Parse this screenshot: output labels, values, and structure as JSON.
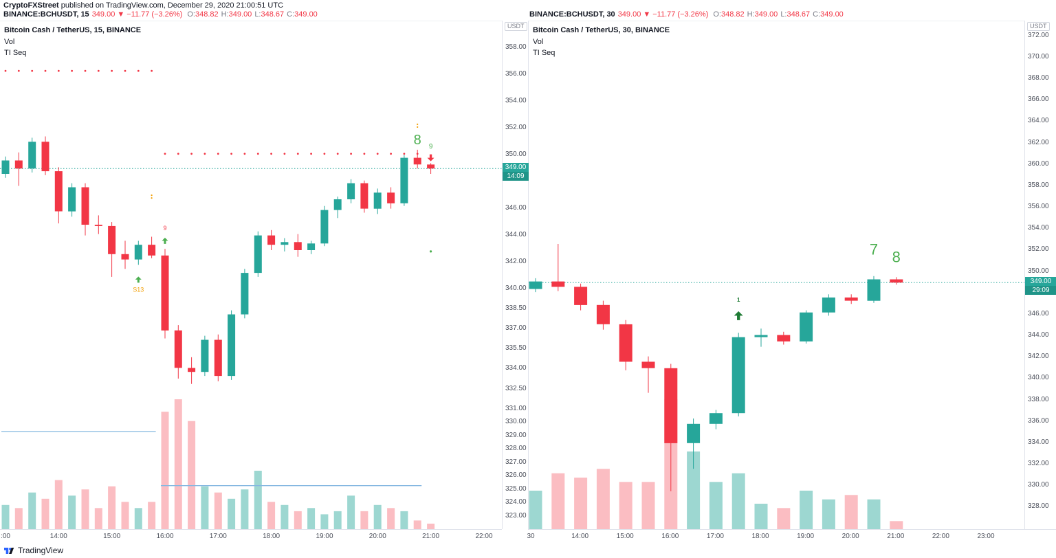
{
  "attribution": {
    "author": "CryptoFXStreet",
    "text": " published on TradingView.com, December 29, 2020 21:00:51 UTC"
  },
  "footer": {
    "brand": "TradingView"
  },
  "colors": {
    "up": "#26a69a",
    "down": "#f23645",
    "vol_up": "rgba(38,166,154,0.45)",
    "vol_down": "rgba(242,54,69,0.33)",
    "green": "#4caf50",
    "red": "#f23645",
    "orange": "#f29f05",
    "darkgreen": "#1e7b34",
    "blue_line": "#86b8e1",
    "tag_bg": "#26a69a"
  },
  "chart_data": [
    {
      "type": "candlestick",
      "header": {
        "symbol": "BINANCE:BCHUSDT, 15",
        "price": "349.00",
        "dir": "▼",
        "change": "−11.77 (−3.26%)",
        "ohlc": [
          {
            "k": "O:",
            "v": "348.82"
          },
          {
            "k": "H:",
            "v": "349.00"
          },
          {
            "k": "L:",
            "v": "348.67"
          },
          {
            "k": "C:",
            "v": "349.00"
          }
        ]
      },
      "legend": {
        "title": "Bitcoin Cash / TetherUS, 15, BINANCE",
        "lines": [
          "Vol",
          "TI Seq"
        ]
      },
      "price_scale": {
        "currency": "USDT",
        "min": 322.0,
        "max": 360.0,
        "last_price": 349.0,
        "last_price_label": "349.00",
        "countdown": "14:09",
        "ticks": [
          "358.00",
          "356.00",
          "354.00",
          "352.00",
          "350.00",
          "346.00",
          "344.00",
          "342.00",
          "340.00",
          "338.50",
          "337.00",
          "335.50",
          "334.00",
          "332.50",
          "331.00",
          "330.00",
          "329.00",
          "328.00",
          "327.00",
          "326.00",
          "325.00",
          "324.00",
          "323.00"
        ]
      },
      "time_axis": {
        "labels": [
          ":00",
          "14:00",
          "15:00",
          "16:00",
          "17:00",
          "18:00",
          "19:00",
          "20:00",
          "21:00",
          "22:00"
        ],
        "interval_min": 15
      },
      "candles": [
        [
          "13:00",
          348.6,
          349.9,
          348.3,
          349.6,
          8
        ],
        [
          "13:15",
          349.6,
          350.2,
          347.7,
          349.0,
          7
        ],
        [
          "13:30",
          349.0,
          351.3,
          348.7,
          351.0,
          12
        ],
        [
          "13:45",
          351.0,
          351.4,
          348.5,
          348.8,
          10
        ],
        [
          "14:00",
          348.8,
          349.1,
          344.9,
          345.8,
          16
        ],
        [
          "14:15",
          345.8,
          347.9,
          345.4,
          347.6,
          11
        ],
        [
          "14:30",
          347.6,
          347.9,
          344.0,
          344.8,
          13
        ],
        [
          "14:45",
          344.8,
          345.5,
          344.1,
          344.7,
          7
        ],
        [
          "15:00",
          344.7,
          345.0,
          340.9,
          342.6,
          14
        ],
        [
          "15:15",
          342.6,
          343.6,
          341.5,
          342.2,
          9
        ],
        [
          "15:30",
          342.2,
          343.6,
          341.8,
          343.3,
          7
        ],
        [
          "15:45",
          343.3,
          343.9,
          342.3,
          342.5,
          9
        ],
        [
          "16:00",
          342.5,
          343.0,
          336.3,
          336.9,
          38
        ],
        [
          "16:15",
          336.9,
          337.3,
          333.3,
          334.1,
          42
        ],
        [
          "16:30",
          334.1,
          334.9,
          332.9,
          333.8,
          35
        ],
        [
          "16:45",
          333.8,
          336.5,
          333.5,
          336.2,
          14
        ],
        [
          "17:00",
          336.2,
          336.6,
          333.1,
          333.5,
          12
        ],
        [
          "17:15",
          333.5,
          338.4,
          333.2,
          338.1,
          10
        ],
        [
          "17:30",
          338.1,
          341.5,
          337.8,
          341.2,
          13
        ],
        [
          "17:45",
          341.2,
          344.3,
          340.9,
          344.0,
          19
        ],
        [
          "18:00",
          344.0,
          344.4,
          342.9,
          343.3,
          9
        ],
        [
          "18:15",
          343.3,
          343.8,
          342.8,
          343.5,
          8
        ],
        [
          "18:30",
          343.5,
          344.1,
          342.4,
          342.9,
          6
        ],
        [
          "18:45",
          342.9,
          343.6,
          342.6,
          343.4,
          7
        ],
        [
          "19:00",
          343.4,
          346.2,
          343.2,
          345.9,
          5
        ],
        [
          "19:15",
          345.9,
          346.9,
          345.3,
          346.7,
          6
        ],
        [
          "19:30",
          346.7,
          348.2,
          346.4,
          347.9,
          11
        ],
        [
          "19:45",
          347.9,
          348.1,
          345.7,
          346.0,
          6
        ],
        [
          "20:00",
          346.0,
          347.5,
          345.6,
          347.2,
          8
        ],
        [
          "20:15",
          347.2,
          347.6,
          346.0,
          346.4,
          7
        ],
        [
          "20:30",
          346.4,
          350.0,
          346.2,
          349.8,
          6
        ],
        [
          "20:45",
          349.8,
          350.4,
          349.0,
          349.3,
          3
        ],
        [
          "21:00",
          349.3,
          349.4,
          348.6,
          349.0,
          2
        ]
      ],
      "dot_rows": [
        {
          "from": 0,
          "to": 11,
          "price": 356.3
        },
        {
          "from": 12,
          "to": 31,
          "price": 350.1
        }
      ],
      "blue_lines": [
        {
          "from": 0,
          "to": 11,
          "price": 329.35
        },
        {
          "from": 12,
          "to": 31,
          "price": 325.3
        }
      ],
      "annotations": [
        {
          "type": "text",
          "text": "8",
          "candle": 31,
          "price": 350.8,
          "color": "green",
          "size": 20
        },
        {
          "type": "text",
          "text": "9",
          "candle": 32,
          "price": 350.5,
          "color": "green",
          "size": 10
        },
        {
          "type": "arrow-down",
          "candle": 32,
          "price": 349.8,
          "color": "red",
          "size": 10
        },
        {
          "type": "text",
          "text": "9",
          "candle": 12,
          "price": 344.4,
          "color": "red",
          "size": 9
        },
        {
          "type": "arrow-up",
          "candle": 12,
          "price": 343.6,
          "color": "green",
          "size": 9
        },
        {
          "type": "arrow-up",
          "candle": 10,
          "price": 340.7,
          "color": "green",
          "size": 9
        },
        {
          "type": "text",
          "text": "S13",
          "candle": 10,
          "price": 339.8,
          "color": "orange",
          "size": 9
        },
        {
          "type": "omark",
          "candle": 31,
          "price": 352.2,
          "color": "orange"
        },
        {
          "type": "omark",
          "candle": 11,
          "price": 346.9,
          "color": "orange"
        },
        {
          "type": "dot",
          "candle": 32,
          "price": 342.8,
          "color": "green"
        }
      ]
    },
    {
      "type": "candlestick",
      "header": {
        "symbol": "BINANCE:BCHUSDT, 30",
        "price": "349.00",
        "dir": "▼",
        "change": "−11.77 (−3.26%)",
        "ohlc": [
          {
            "k": "O:",
            "v": "348.82"
          },
          {
            "k": "H:",
            "v": "349.00"
          },
          {
            "k": "L:",
            "v": "348.67"
          },
          {
            "k": "C:",
            "v": "349.00"
          }
        ]
      },
      "legend": {
        "title": "Bitcoin Cash / TetherUS, 30, BINANCE",
        "lines": [
          "Vol",
          "TI Seq"
        ]
      },
      "price_scale": {
        "currency": "USDT",
        "min": 325.9,
        "max": 373.4,
        "last_price": 349.0,
        "last_price_label": "349.00",
        "countdown": "29:09",
        "ticks": [
          "372.00",
          "370.00",
          "368.00",
          "366.00",
          "364.00",
          "362.00",
          "360.00",
          "358.00",
          "356.00",
          "354.00",
          "352.00",
          "350.00",
          "346.00",
          "344.00",
          "342.00",
          "340.00",
          "338.00",
          "336.00",
          "334.00",
          "332.00",
          "330.00",
          "328.00"
        ]
      },
      "time_axis": {
        "labels": [
          "30",
          "14:00",
          "15:00",
          "16:00",
          "17:00",
          "18:00",
          "19:00",
          "20:00",
          "21:00",
          "22:00",
          "23:00"
        ],
        "interval_min": 30
      },
      "candles": [
        [
          "13:00",
          348.4,
          349.4,
          348.1,
          349.1,
          9
        ],
        [
          "13:30",
          349.1,
          352.6,
          348.2,
          348.6,
          13
        ],
        [
          "14:00",
          348.6,
          348.9,
          346.4,
          346.9,
          12
        ],
        [
          "14:30",
          346.9,
          347.3,
          344.6,
          345.1,
          14
        ],
        [
          "15:00",
          345.1,
          345.5,
          340.8,
          341.6,
          11
        ],
        [
          "15:30",
          341.6,
          342.1,
          338.7,
          341.0,
          11
        ],
        [
          "16:00",
          341.0,
          341.4,
          329.5,
          334.0,
          30
        ],
        [
          "16:30",
          334.0,
          336.3,
          331.6,
          335.8,
          18
        ],
        [
          "17:00",
          335.8,
          337.1,
          335.3,
          336.8,
          11
        ],
        [
          "17:30",
          336.8,
          344.3,
          336.5,
          343.9,
          13
        ],
        [
          "18:00",
          343.9,
          344.7,
          343.0,
          344.1,
          6
        ],
        [
          "18:30",
          344.1,
          344.4,
          343.2,
          343.5,
          5
        ],
        [
          "19:00",
          343.5,
          346.4,
          343.3,
          346.2,
          9
        ],
        [
          "19:30",
          346.2,
          347.9,
          345.9,
          347.6,
          7
        ],
        [
          "20:00",
          347.6,
          347.9,
          347.0,
          347.3,
          8
        ],
        [
          "20:30",
          347.3,
          349.6,
          347.1,
          349.3,
          7
        ],
        [
          "21:00",
          349.3,
          349.5,
          348.8,
          349.0,
          2
        ]
      ],
      "dot_rows": [],
      "blue_lines": [],
      "annotations": [
        {
          "type": "text",
          "text": "7",
          "candle": 15,
          "price": 351.6,
          "color": "green",
          "size": 22
        },
        {
          "type": "text",
          "text": "8",
          "candle": 16,
          "price": 350.9,
          "color": "green",
          "size": 22
        },
        {
          "type": "text",
          "text": "1",
          "candle": 9,
          "price": 347.2,
          "color": "darkgreen",
          "size": 8,
          "bold": true
        },
        {
          "type": "arrow-up",
          "candle": 9,
          "price": 345.9,
          "color": "darkgreen",
          "size": 13
        }
      ]
    }
  ]
}
